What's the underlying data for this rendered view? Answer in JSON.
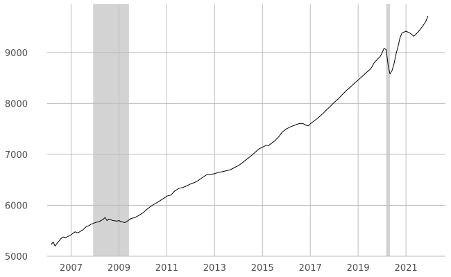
{
  "chart_data": {
    "type": "line",
    "title": "",
    "xlabel": "",
    "ylabel": "",
    "xlim": [
      2006.0,
      2022.65
    ],
    "ylim": [
      5000,
      9950
    ],
    "grid": true,
    "legend": "none",
    "x_ticks": [
      2007,
      2009,
      2011,
      2013,
      2015,
      2017,
      2019,
      2021
    ],
    "x_tick_labels": [
      "2007",
      "2009",
      "2011",
      "2013",
      "2015",
      "2017",
      "2019",
      "2021"
    ],
    "y_ticks": [
      5000,
      6000,
      7000,
      8000,
      9000
    ],
    "y_tick_labels": [
      "5000",
      "6000",
      "7000",
      "8000",
      "9000"
    ],
    "shaded_periods": [
      {
        "start": 2007.92,
        "end": 2009.42
      },
      {
        "start": 2020.17,
        "end": 2020.33
      }
    ],
    "colors": {
      "line": "#000000",
      "shading": "#d3d3d3",
      "grid": "#bdbdbd"
    },
    "series": [
      {
        "x": [
          2006.17,
          2006.25,
          2006.33,
          2006.42,
          2006.5,
          2006.58,
          2006.67,
          2006.75,
          2006.83,
          2006.92,
          2007.0,
          2007.08,
          2007.17,
          2007.25,
          2007.33,
          2007.42,
          2007.5,
          2007.58,
          2007.67,
          2007.75,
          2007.83,
          2007.92,
          2008.0,
          2008.17,
          2008.33,
          2008.42,
          2008.5,
          2008.58,
          2008.75,
          2008.92,
          2009.0,
          2009.08,
          2009.25,
          2009.42,
          2009.5,
          2009.67,
          2009.83,
          2010.0,
          2010.17,
          2010.33,
          2010.5,
          2010.58,
          2010.75,
          2010.92,
          2011.0,
          2011.17,
          2011.33,
          2011.5,
          2011.67,
          2011.83,
          2012.0,
          2012.17,
          2012.33,
          2012.5,
          2012.67,
          2012.83,
          2013.0,
          2013.17,
          2013.33,
          2013.5,
          2013.67,
          2013.83,
          2014.0,
          2014.17,
          2014.33,
          2014.5,
          2014.67,
          2014.83,
          2015.0,
          2015.08,
          2015.17,
          2015.25,
          2015.33,
          2015.5,
          2015.67,
          2015.83,
          2016.0,
          2016.17,
          2016.33,
          2016.5,
          2016.67,
          2016.75,
          2016.83,
          2016.92,
          2017.0,
          2017.17,
          2017.33,
          2017.5,
          2017.67,
          2017.83,
          2018.0,
          2018.17,
          2018.33,
          2018.5,
          2018.67,
          2018.83,
          2019.0,
          2019.17,
          2019.33,
          2019.5,
          2019.58,
          2019.67,
          2019.83,
          2019.92,
          2020.0,
          2020.08,
          2020.17,
          2020.25,
          2020.33,
          2020.42,
          2020.5,
          2020.58,
          2020.67,
          2020.75,
          2020.83,
          2021.0,
          2021.17,
          2021.33,
          2021.5,
          2021.67,
          2021.83,
          2021.92
        ],
        "values": [
          5230,
          5280,
          5200,
          5260,
          5300,
          5350,
          5380,
          5360,
          5380,
          5400,
          5420,
          5450,
          5480,
          5460,
          5470,
          5500,
          5520,
          5560,
          5590,
          5600,
          5630,
          5640,
          5660,
          5680,
          5720,
          5760,
          5700,
          5730,
          5700,
          5690,
          5700,
          5680,
          5660,
          5710,
          5740,
          5760,
          5800,
          5850,
          5920,
          5980,
          6030,
          6050,
          6100,
          6150,
          6180,
          6200,
          6280,
          6330,
          6350,
          6380,
          6420,
          6450,
          6490,
          6550,
          6600,
          6610,
          6620,
          6650,
          6660,
          6680,
          6700,
          6740,
          6780,
          6840,
          6900,
          6960,
          7030,
          7100,
          7140,
          7160,
          7180,
          7170,
          7200,
          7260,
          7340,
          7440,
          7500,
          7540,
          7570,
          7600,
          7610,
          7590,
          7570,
          7560,
          7600,
          7660,
          7720,
          7790,
          7870,
          7940,
          8020,
          8090,
          8170,
          8250,
          8320,
          8390,
          8460,
          8530,
          8600,
          8670,
          8720,
          8800,
          8880,
          8920,
          8990,
          9080,
          9060,
          8760,
          8580,
          8650,
          8780,
          8960,
          9120,
          9290,
          9380,
          9420,
          9380,
          9320,
          9400,
          9500,
          9610,
          9720
        ]
      }
    ]
  }
}
